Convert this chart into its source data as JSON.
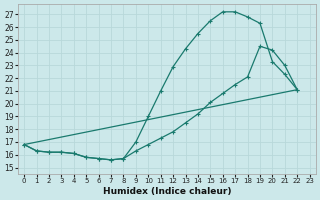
{
  "xlabel": "Humidex (Indice chaleur)",
  "xlim": [
    -0.5,
    23.5
  ],
  "ylim": [
    14.5,
    27.8
  ],
  "yticks": [
    15,
    16,
    17,
    18,
    19,
    20,
    21,
    22,
    23,
    24,
    25,
    26,
    27
  ],
  "xticks": [
    0,
    1,
    2,
    3,
    4,
    5,
    6,
    7,
    8,
    9,
    10,
    11,
    12,
    13,
    14,
    15,
    16,
    17,
    18,
    19,
    20,
    21,
    22,
    23
  ],
  "bg_color": "#cce8ea",
  "grid_color": "#b8d8da",
  "line_color": "#1a7a6e",
  "line1_x": [
    0,
    1,
    2,
    3,
    4,
    5,
    6,
    7,
    8,
    9,
    10,
    11,
    12,
    13,
    14,
    15,
    16,
    17,
    18,
    19,
    20,
    21,
    22
  ],
  "line1_y": [
    16.8,
    16.3,
    16.2,
    16.2,
    16.1,
    15.8,
    15.7,
    15.6,
    15.7,
    17.0,
    19.0,
    21.0,
    22.9,
    24.3,
    25.5,
    26.5,
    27.2,
    27.2,
    26.8,
    26.3,
    23.3,
    22.3,
    21.1
  ],
  "line2_x": [
    0,
    1,
    2,
    3,
    4,
    5,
    6,
    7,
    8,
    9,
    10,
    11,
    12,
    13,
    14,
    15,
    16,
    17,
    18,
    19,
    20,
    21,
    22
  ],
  "line2_y": [
    16.8,
    16.3,
    16.2,
    16.2,
    16.1,
    15.8,
    15.7,
    15.6,
    15.7,
    16.3,
    16.8,
    17.3,
    17.8,
    18.5,
    19.2,
    20.1,
    20.8,
    21.5,
    22.1,
    24.5,
    24.2,
    23.0,
    21.1
  ],
  "line3_x": [
    0,
    22
  ],
  "line3_y": [
    16.8,
    21.1
  ]
}
